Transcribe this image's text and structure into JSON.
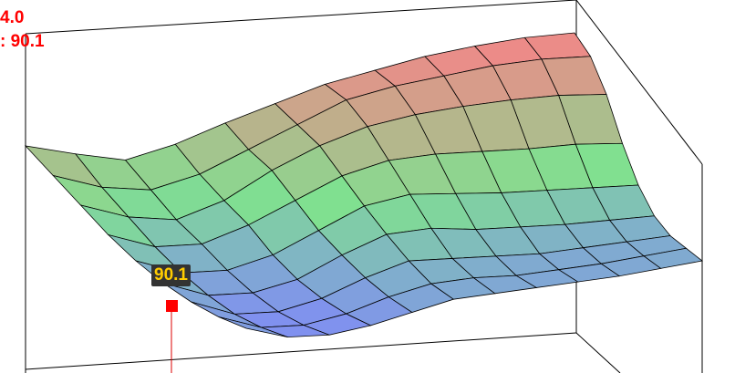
{
  "chart_data": {
    "type": "surface",
    "title": "",
    "readout": {
      "line1": "4.0",
      "line2": ": 90.1"
    },
    "tooltip": "90.1",
    "z_grid": [
      [
        70,
        62,
        55,
        60,
        68,
        75,
        82,
        86,
        90,
        92,
        93,
        92
      ],
      [
        60,
        50,
        45,
        50,
        60,
        70,
        80,
        84,
        86,
        88,
        88,
        86
      ],
      [
        50,
        40,
        35,
        42,
        55,
        65,
        72,
        75,
        76,
        76,
        75,
        72
      ],
      [
        40,
        30,
        28,
        35,
        45,
        55,
        60,
        60,
        58,
        56,
        55,
        52
      ],
      [
        32,
        22,
        20,
        25,
        35,
        45,
        48,
        45,
        42,
        40,
        38,
        36
      ],
      [
        26,
        16,
        14,
        18,
        28,
        36,
        36,
        32,
        30,
        28,
        27,
        26
      ],
      [
        22,
        12,
        10,
        14,
        22,
        28,
        26,
        24,
        22,
        22,
        22,
        22
      ],
      [
        20,
        11,
        9,
        12,
        18,
        22,
        22,
        20,
        20,
        20,
        21,
        22
      ],
      [
        20,
        12,
        10,
        12,
        16,
        20,
        20,
        20,
        20,
        20,
        21,
        22
      ]
    ],
    "colorscale": {
      "low": "#8090f0",
      "mid": "#80e090",
      "high": "#f08888"
    },
    "marker_color": "#ff0000",
    "grid": false
  }
}
